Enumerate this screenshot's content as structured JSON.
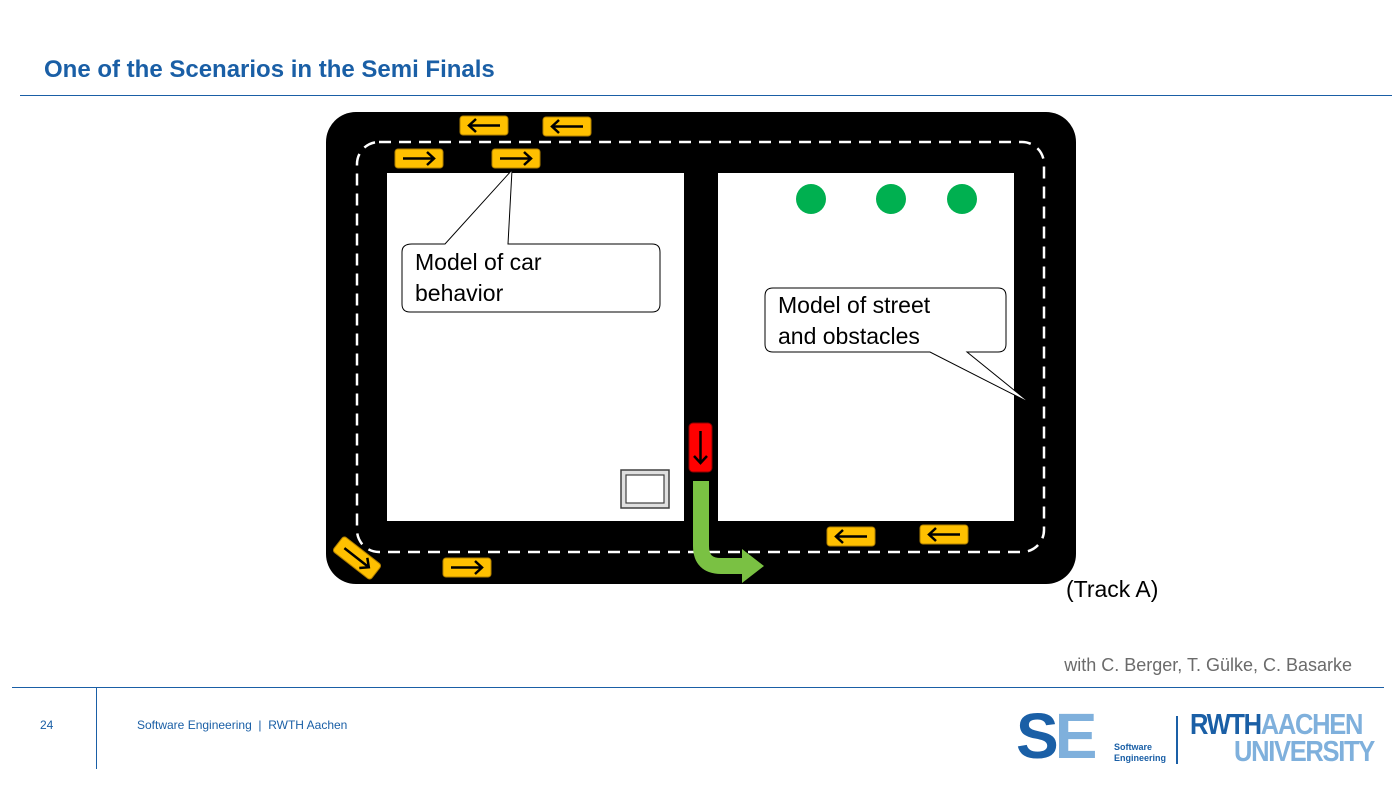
{
  "slide": {
    "title": "One of the Scenarios in the Semi Finals",
    "page_number": "24",
    "footer": "Software Engineering  |  RWTH Aachen",
    "credits": "with C. Berger, T. Gülke, C. Basarke"
  },
  "diagram": {
    "callout_car": [
      "Model of car",
      "behavior"
    ],
    "callout_street": [
      "Model of street",
      "and obstacles"
    ],
    "track_label": "(Track A)",
    "colors": {
      "road": "#000000",
      "car": "#ffc000",
      "ego_car": "#ff0000",
      "obstacle": "#00b050",
      "path_arrow": "#7ac143"
    },
    "icons": {
      "car": "arrow-car-icon",
      "ego_car": "down-arrow-car-icon",
      "obstacle": "dot-icon",
      "parking": "box-icon",
      "path": "turn-right-arrow-icon"
    }
  },
  "logos": {
    "se_main_1": "S",
    "se_main_2": "E",
    "se_sub": [
      "Software",
      "Engineering"
    ],
    "rwth_1": "RWTH",
    "rwth_2": "AACHEN",
    "rwth_3": "UNIVERSITY"
  }
}
